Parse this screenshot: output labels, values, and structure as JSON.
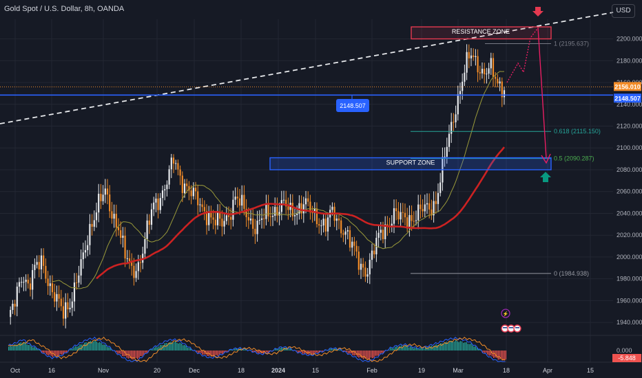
{
  "header": {
    "title": "Gold Spot / U.S. Dollar, 8h, OANDA",
    "currency": "USD"
  },
  "colors": {
    "background": "#161a25",
    "grid": "#232733",
    "up_candle": "#e8eaed",
    "down_candle": "#f28c28",
    "ma_fast": "#9a9a3a",
    "ma_slow": "#cc2222",
    "hline": "#2962ff",
    "resistance": "#e53950",
    "support": "#2962ff",
    "fib_mid": "#26a69a",
    "arrow_down": "#e53950",
    "arrow_up": "#089981",
    "path": "#e91e63"
  },
  "chart_data": {
    "type": "candlestick",
    "x_ticks": [
      "Oct",
      "16",
      "Nov",
      "20",
      "Dec",
      "18",
      "2024",
      "15",
      "Feb",
      "19",
      "Mar",
      "18",
      "Apr",
      "15"
    ],
    "y_ticks": [
      "2200.000",
      "2180.000",
      "2160.000",
      "2140.000",
      "2120.000",
      "2100.000",
      "2080.000",
      "2060.000",
      "2040.000",
      "2020.000",
      "2000.000",
      "1980.000",
      "1960.000",
      "1940.000"
    ],
    "ylim": [
      1930,
      2218
    ],
    "price_labels": {
      "current": "2156.010",
      "hline": "2148.507"
    },
    "hline_tag": "2148.507",
    "annotations": {
      "resistance": "RESISTANCE ZONE",
      "support": "SUPPORT ZONE"
    },
    "fib_levels": [
      {
        "label": "1 (2195.637)",
        "value": 2195.637
      },
      {
        "label": "0.618 (2115.150)",
        "value": 2115.15
      },
      {
        "label": "0.5 (2090.287)",
        "value": 2090.287
      },
      {
        "label": "0 (1984.938)",
        "value": 1984.938
      }
    ],
    "zones": {
      "resistance": [
        2200,
        2211
      ],
      "support": [
        2080,
        2091
      ]
    },
    "close_path": [
      1942,
      1958,
      1985,
      1975,
      1990,
      1995,
      1975,
      1960,
      1948,
      1960,
      1980,
      2000,
      2030,
      2050,
      2058,
      2040,
      2030,
      2000,
      1985,
      1995,
      2020,
      2045,
      2055,
      2070,
      2088,
      2072,
      2065,
      2055,
      2045,
      2040,
      2032,
      2030,
      2040,
      2055,
      2045,
      2035,
      2028,
      2035,
      2040,
      2045,
      2048,
      2040,
      2045,
      2050,
      2040,
      2035,
      2030,
      2040,
      2030,
      2025,
      2008,
      1992,
      1988,
      2005,
      2020,
      2030,
      2040,
      2035,
      2035,
      2038,
      2042,
      2045,
      2050,
      2080,
      2110,
      2140,
      2165,
      2185,
      2180,
      2168,
      2172,
      2160,
      2156
    ],
    "indicator_values": {
      "zero": "0.000",
      "current": "-5.848"
    },
    "oscillator": [
      0.4,
      0.6,
      0.9,
      0.5,
      0.2,
      -0.3,
      -0.6,
      -0.5,
      -0.2,
      0.3,
      0.6,
      0.9,
      1.0,
      0.7,
      0.3,
      -0.2,
      -0.6,
      -0.9,
      -0.8,
      -0.3,
      0.2,
      0.5,
      0.8,
      0.9,
      0.7,
      0.3,
      -0.1,
      -0.4,
      -0.6,
      -0.5,
      -0.2,
      0.1,
      0.2,
      0.1,
      -0.1,
      -0.3,
      -0.2,
      0.1,
      0.3,
      0.2,
      -0.1,
      -0.3,
      -0.4,
      -0.2,
      0.0,
      0.2,
      0.1,
      -0.2,
      -0.5,
      -0.8,
      -0.9,
      -0.6,
      -0.2,
      0.2,
      0.4,
      0.5,
      0.3,
      0.2,
      0.3,
      0.5,
      0.7,
      0.9,
      1.0,
      0.9,
      0.7,
      0.3,
      -0.2,
      -0.6,
      -0.9,
      -1.0
    ]
  }
}
